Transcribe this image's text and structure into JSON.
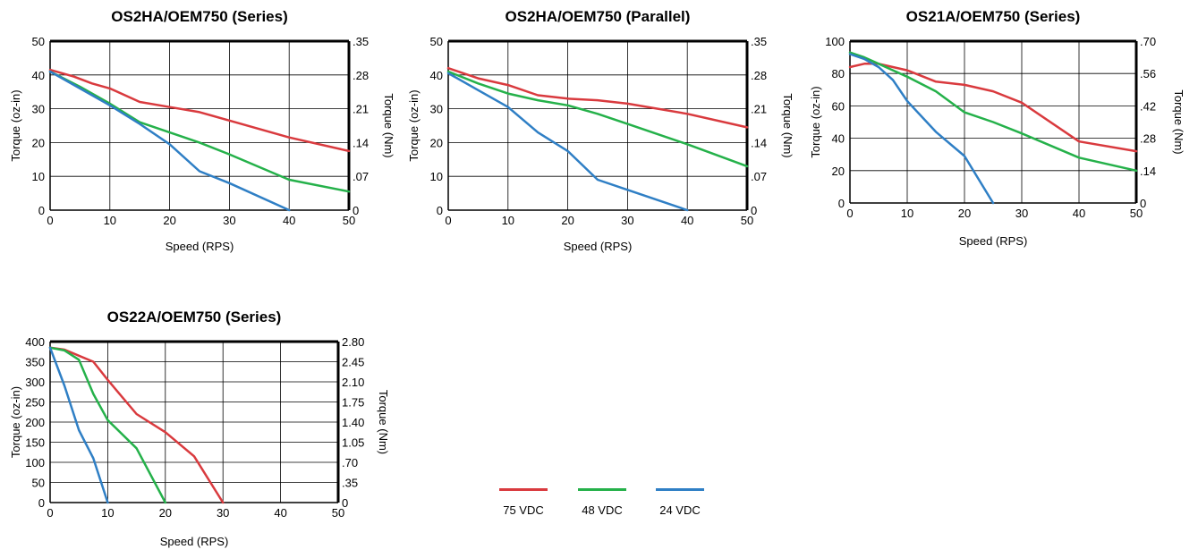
{
  "colors": {
    "v75": "#d93a3e",
    "v48": "#25b14a",
    "v24": "#2f7fc5",
    "frame": "#000000",
    "grid": "#000000"
  },
  "legend": [
    {
      "label": "75 VDC",
      "color": "#d93a3e"
    },
    {
      "label": "48 VDC",
      "color": "#25b14a"
    },
    {
      "label": "24 VDC",
      "color": "#2f7fc5"
    }
  ],
  "chart_data": [
    {
      "type": "line",
      "title": "OS2HA/OEM750 (Series)",
      "xlabel": "Speed (RPS)",
      "ylabel": "Torque (oz-in)",
      "y2label": "Torque (Nm)",
      "xlim": [
        0,
        50
      ],
      "ylim": [
        0,
        50
      ],
      "xticks": [
        "0",
        "10",
        "20",
        "30",
        "40",
        "50"
      ],
      "yticks": [
        "0",
        "10",
        "20",
        "30",
        "40",
        "50"
      ],
      "y2ticks": [
        "0",
        ".07",
        ".14",
        ".21",
        ".28",
        ".35"
      ],
      "grid": true,
      "series": [
        {
          "name": "75 VDC",
          "points": [
            [
              0,
              41.5
            ],
            [
              4,
              39.5
            ],
            [
              7,
              37.5
            ],
            [
              10,
              36
            ],
            [
              15,
              32
            ],
            [
              20,
              30.5
            ],
            [
              25,
              29
            ],
            [
              30,
              26.5
            ],
            [
              40,
              21.5
            ],
            [
              50,
              17.5
            ]
          ]
        },
        {
          "name": "48 VDC",
          "points": [
            [
              0,
              41
            ],
            [
              5,
              36.5
            ],
            [
              10,
              31.5
            ],
            [
              15,
              26
            ],
            [
              20,
              23
            ],
            [
              25,
              20
            ],
            [
              30,
              16.5
            ],
            [
              40,
              9
            ],
            [
              50,
              5.5
            ]
          ]
        },
        {
          "name": "24 VDC",
          "points": [
            [
              0,
              41
            ],
            [
              5,
              36
            ],
            [
              10,
              31
            ],
            [
              15,
              25.5
            ],
            [
              20,
              19.5
            ],
            [
              25,
              11.5
            ],
            [
              30,
              8
            ],
            [
              40,
              0
            ]
          ]
        }
      ]
    },
    {
      "type": "line",
      "title": "OS2HA/OEM750 (Parallel)",
      "xlabel": "Speed (RPS)",
      "ylabel": "Torque (oz-in)",
      "y2label": "Torque (Nm)",
      "xlim": [
        0,
        50
      ],
      "ylim": [
        0,
        50
      ],
      "xticks": [
        "0",
        "10",
        "20",
        "30",
        "40",
        "50"
      ],
      "yticks": [
        "0",
        "10",
        "20",
        "30",
        "40",
        "50"
      ],
      "y2ticks": [
        "0",
        ".07",
        ".14",
        ".21",
        ".28",
        ".35"
      ],
      "grid": true,
      "series": [
        {
          "name": "75 VDC",
          "points": [
            [
              0,
              42
            ],
            [
              5,
              39
            ],
            [
              10,
              37
            ],
            [
              15,
              34
            ],
            [
              20,
              33
            ],
            [
              25,
              32.5
            ],
            [
              30,
              31.5
            ],
            [
              40,
              28.5
            ],
            [
              50,
              24.5
            ]
          ]
        },
        {
          "name": "48 VDC",
          "points": [
            [
              0,
              41
            ],
            [
              5,
              37.5
            ],
            [
              10,
              34.5
            ],
            [
              15,
              32.5
            ],
            [
              20,
              31
            ],
            [
              25,
              28.5
            ],
            [
              30,
              25.5
            ],
            [
              40,
              19.5
            ],
            [
              50,
              13
            ]
          ]
        },
        {
          "name": "24 VDC",
          "points": [
            [
              0,
              40.5
            ],
            [
              5,
              35.5
            ],
            [
              10,
              30.5
            ],
            [
              15,
              23
            ],
            [
              20,
              17.5
            ],
            [
              25,
              9
            ],
            [
              30,
              6
            ],
            [
              40,
              0
            ]
          ]
        }
      ]
    },
    {
      "type": "line",
      "title": "OS21A/OEM750 (Series)",
      "xlabel": "Speed (RPS)",
      "ylabel": "Torque (oz-in)",
      "y2label": "Torque (Nm)",
      "xlim": [
        0,
        50
      ],
      "ylim": [
        0,
        100
      ],
      "xticks": [
        "0",
        "10",
        "20",
        "30",
        "40",
        "50"
      ],
      "yticks": [
        "0",
        "20",
        "40",
        "60",
        "80",
        "100"
      ],
      "y2ticks": [
        "0",
        ".14",
        ".28",
        ".42",
        ".56",
        ".70"
      ],
      "grid": true,
      "series": [
        {
          "name": "75 VDC",
          "points": [
            [
              0,
              84
            ],
            [
              2.5,
              86
            ],
            [
              5,
              86
            ],
            [
              7.5,
              84
            ],
            [
              10,
              82
            ],
            [
              15,
              75
            ],
            [
              20,
              73
            ],
            [
              25,
              69
            ],
            [
              30,
              62
            ],
            [
              40,
              38
            ],
            [
              50,
              32
            ]
          ]
        },
        {
          "name": "48 VDC",
          "points": [
            [
              0,
              93
            ],
            [
              2.5,
              90
            ],
            [
              5,
              86
            ],
            [
              7.5,
              82
            ],
            [
              10,
              78
            ],
            [
              15,
              69
            ],
            [
              20,
              56
            ],
            [
              25,
              50
            ],
            [
              30,
              43
            ],
            [
              40,
              28
            ],
            [
              50,
              20
            ]
          ]
        },
        {
          "name": "24 VDC",
          "points": [
            [
              0,
              92
            ],
            [
              2.5,
              89
            ],
            [
              5,
              84
            ],
            [
              7.5,
              76
            ],
            [
              10,
              63
            ],
            [
              15,
              44
            ],
            [
              20,
              29
            ],
            [
              25,
              0
            ]
          ]
        }
      ]
    },
    {
      "type": "line",
      "title": "OS22A/OEM750 (Series)",
      "xlabel": "Speed (RPS)",
      "ylabel": "Torque (oz-in)",
      "y2label": "Torque (Nm)",
      "xlim": [
        0,
        50
      ],
      "ylim": [
        0,
        400
      ],
      "xticks": [
        "0",
        "10",
        "20",
        "30",
        "40",
        "50"
      ],
      "yticks": [
        "0",
        "50",
        "100",
        "150",
        "200",
        "250",
        "300",
        "350",
        "400"
      ],
      "y2ticks": [
        "0",
        ".35",
        ".70",
        "1.05",
        "1.40",
        "1.75",
        "2.10",
        "2.45",
        "2.80"
      ],
      "grid": true,
      "series": [
        {
          "name": "75 VDC",
          "points": [
            [
              0,
              385
            ],
            [
              2.5,
              380
            ],
            [
              5,
              365
            ],
            [
              7.5,
              350
            ],
            [
              10,
              305
            ],
            [
              15,
              220
            ],
            [
              20,
              175
            ],
            [
              25,
              115
            ],
            [
              30,
              0
            ]
          ]
        },
        {
          "name": "48 VDC",
          "points": [
            [
              0,
              385
            ],
            [
              2.5,
              378
            ],
            [
              5,
              355
            ],
            [
              7.5,
              270
            ],
            [
              10,
              205
            ],
            [
              15,
              135
            ],
            [
              20,
              0
            ]
          ]
        },
        {
          "name": "24 VDC",
          "points": [
            [
              0,
              385
            ],
            [
              2.5,
              290
            ],
            [
              5,
              180
            ],
            [
              7.5,
              110
            ],
            [
              10,
              0
            ]
          ]
        }
      ]
    }
  ]
}
